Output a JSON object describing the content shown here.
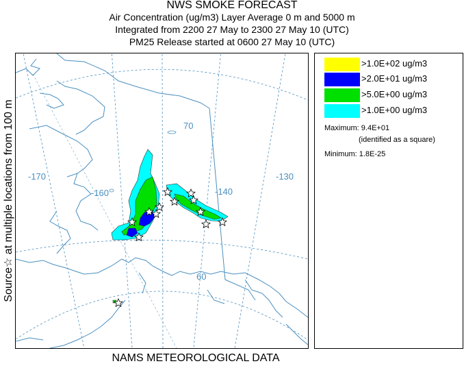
{
  "header": {
    "title": "NWS SMOKE FORECAST",
    "line2": "Air Concentration (ug/m3) Layer Average    0 m and  5000 m",
    "line3": "Integrated from 2200 27 May to 2300 27 May 10 (UTC)",
    "line4": "PM25 Release started at 0600 27 May 10 (UTC)"
  },
  "side_label": "Source☆  at multiple locations   from  100 m",
  "footer": "NAMS METEOROLOGICAL DATA",
  "map": {
    "graticule_labels": [
      "-170",
      "-160",
      "-140",
      "-130",
      "70",
      "60"
    ]
  },
  "legend": {
    "items": [
      {
        "label": ">1.0E+02 ug/m3",
        "color": "#ffff00"
      },
      {
        "label": ">2.0E+01 ug/m3",
        "color": "#0000ff"
      },
      {
        "label": ">5.0E+00 ug/m3",
        "color": "#00e000"
      },
      {
        "label": ">1.0E+00 ug/m3",
        "color": "#00ffff"
      }
    ],
    "maximum_label": "Maximum:",
    "maximum_value": "9.4E+01",
    "maximum_note": "(identified as a square)",
    "minimum_label": "Minimum:",
    "minimum_value": "1.8E-25"
  },
  "colors": {
    "coast": "#4a8fc0",
    "graticule": "#4a8fc0",
    "border": "#4a8fc0",
    "contour_line": "#333333"
  }
}
